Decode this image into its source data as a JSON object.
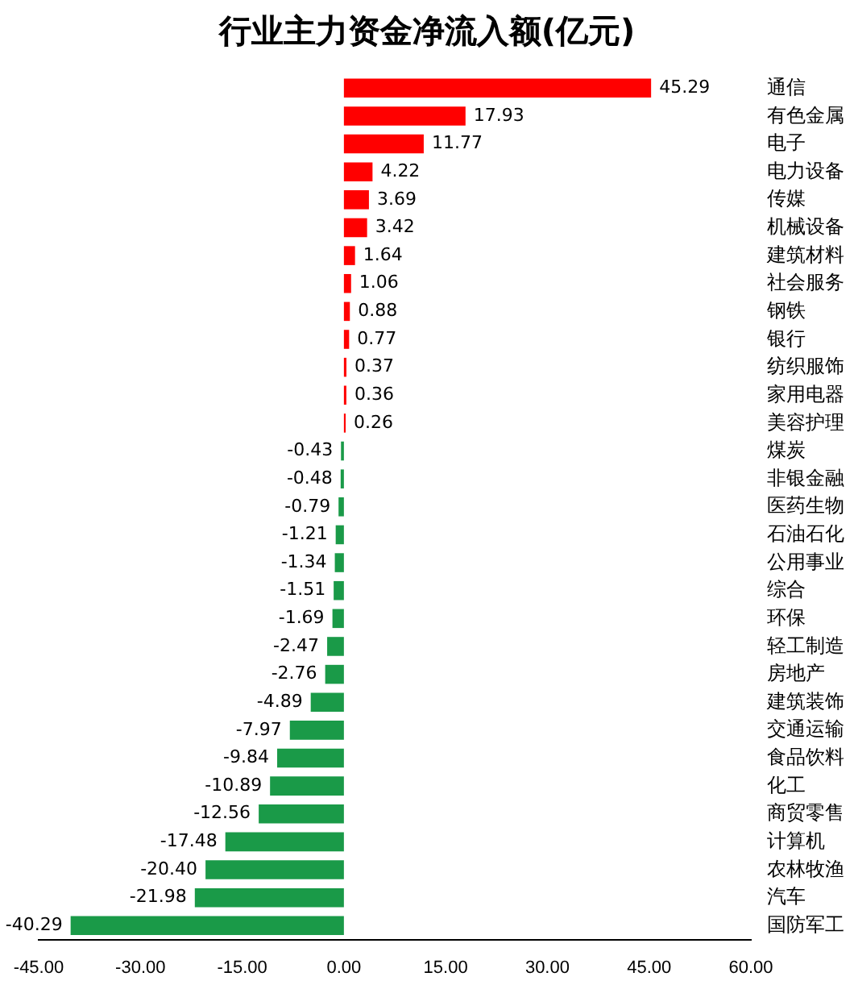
{
  "chart_data": {
    "type": "bar",
    "orientation": "horizontal",
    "title": "行业主力资金净流入额(亿元)",
    "categories": [
      "通信",
      "有色金属",
      "电子",
      "电力设备",
      "传媒",
      "机械设备",
      "建筑材料",
      "社会服务",
      "钢铁",
      "银行",
      "纺织服饰",
      "家用电器",
      "美容护理",
      "煤炭",
      "非银金融",
      "医药生物",
      "石油石化",
      "公用事业",
      "综合",
      "环保",
      "轻工制造",
      "房地产",
      "建筑装饰",
      "交通运输",
      "食品饮料",
      "化工",
      "商贸零售",
      "计算机",
      "农林牧渔",
      "汽车",
      "国防军工"
    ],
    "values": [
      45.29,
      17.93,
      11.77,
      4.22,
      3.69,
      3.42,
      1.64,
      1.06,
      0.88,
      0.77,
      0.37,
      0.36,
      0.26,
      -0.43,
      -0.48,
      -0.79,
      -1.21,
      -1.34,
      -1.51,
      -1.69,
      -2.47,
      -2.76,
      -4.89,
      -7.97,
      -9.84,
      -10.89,
      -12.56,
      -17.48,
      -20.4,
      -21.98,
      -40.29
    ],
    "value_labels": [
      "45.29",
      "17.93",
      "11.77",
      "4.22",
      "3.69",
      "3.42",
      "1.64",
      "1.06",
      "0.88",
      "0.77",
      "0.37",
      "0.36",
      "0.26",
      "-0.43",
      "-0.48",
      "-0.79",
      "-1.21",
      "-1.34",
      "-1.51",
      "-1.69",
      "-2.47",
      "-2.76",
      "-4.89",
      "-7.97",
      "-9.84",
      "-10.89",
      "-12.56",
      "-17.48",
      "-20.40",
      "-21.98",
      "-40.29"
    ],
    "colors": [
      "#ff0000",
      "#ff0000",
      "#ff0000",
      "#ff0000",
      "#ff0000",
      "#ff0000",
      "#ff0000",
      "#ff0000",
      "#ff0000",
      "#ff0000",
      "#ff0000",
      "#ff0000",
      "#ff0000",
      "#1a9a48",
      "#1a9a48",
      "#1a9a48",
      "#1a9a48",
      "#1a9a48",
      "#1a9a48",
      "#1a9a48",
      "#1a9a48",
      "#1a9a48",
      "#1a9a48",
      "#1a9a48",
      "#1a9a48",
      "#1a9a48",
      "#1a9a48",
      "#1a9a48",
      "#1a9a48",
      "#1a9a48",
      "#1a9a48"
    ],
    "xlim": [
      -45,
      60
    ],
    "xticks": [
      {
        "value": -45,
        "label": "-45.00"
      },
      {
        "value": -30,
        "label": "-30.00"
      },
      {
        "value": -15,
        "label": "-15.00"
      },
      {
        "value": 0,
        "label": "0.00"
      },
      {
        "value": 15,
        "label": "15.00"
      },
      {
        "value": 30,
        "label": "30.00"
      },
      {
        "value": 45,
        "label": "45.00"
      },
      {
        "value": 60,
        "label": "60.00"
      }
    ],
    "grid": false,
    "legend": false
  }
}
